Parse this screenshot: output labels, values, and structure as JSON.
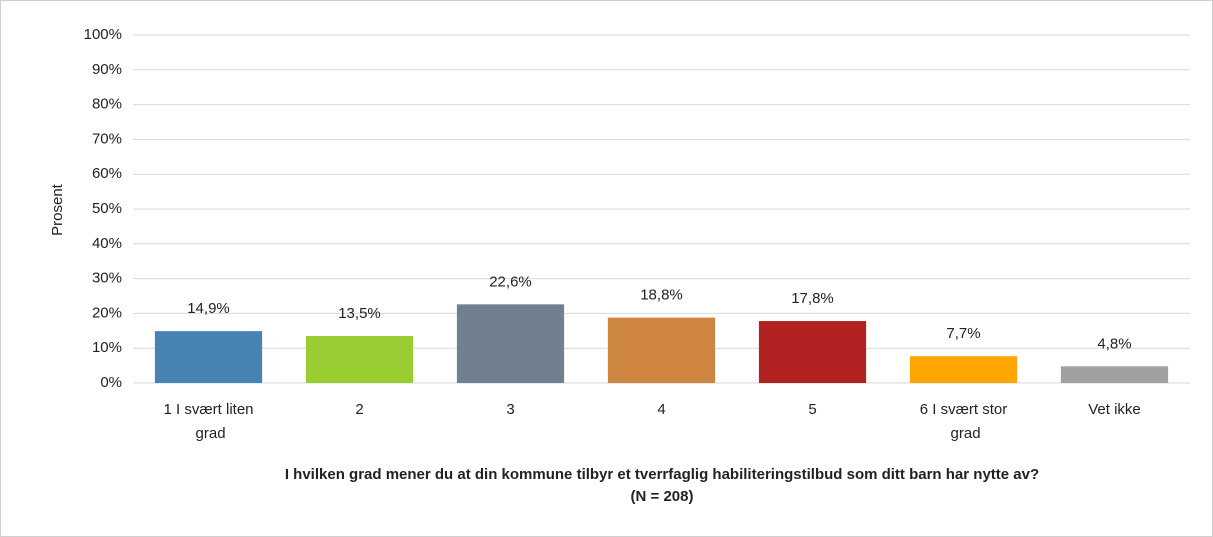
{
  "chart_data": {
    "type": "bar",
    "ylabel": "Prosent",
    "xlabel": [
      "I hvilken grad mener du at din kommune tilbyr et tverrfaglig habiliteringstilbud som ditt barn har nytte av?",
      "(N = 208)"
    ],
    "categories": [
      "1 I svært liten grad",
      "2",
      "3",
      "4",
      "5",
      "6 I svært stor grad",
      "Vet ikke"
    ],
    "values": [
      14.9,
      13.5,
      22.6,
      18.8,
      17.8,
      7.7,
      4.8
    ],
    "value_labels": [
      "14,9%",
      "13,5%",
      "22,6%",
      "18,8%",
      "17,8%",
      "7,7%",
      "4,8%"
    ],
    "colors": [
      "#4682b4",
      "#9acd32",
      "#708090",
      "#cd853f",
      "#b22222",
      "#ffa500",
      "#a0a0a0"
    ],
    "ylim": [
      0,
      100
    ],
    "yticks": [
      {
        "value": 0,
        "label": "0%"
      },
      {
        "value": 10,
        "label": "10%"
      },
      {
        "value": 20,
        "label": "20%"
      },
      {
        "value": 30,
        "label": "30%"
      },
      {
        "value": 40,
        "label": "40%"
      },
      {
        "value": 50,
        "label": "50%"
      },
      {
        "value": 60,
        "label": "60%"
      },
      {
        "value": 70,
        "label": "70%"
      },
      {
        "value": 80,
        "label": "80%"
      },
      {
        "value": 90,
        "label": "90%"
      },
      {
        "value": 100,
        "label": "100%"
      }
    ],
    "grid": true
  }
}
